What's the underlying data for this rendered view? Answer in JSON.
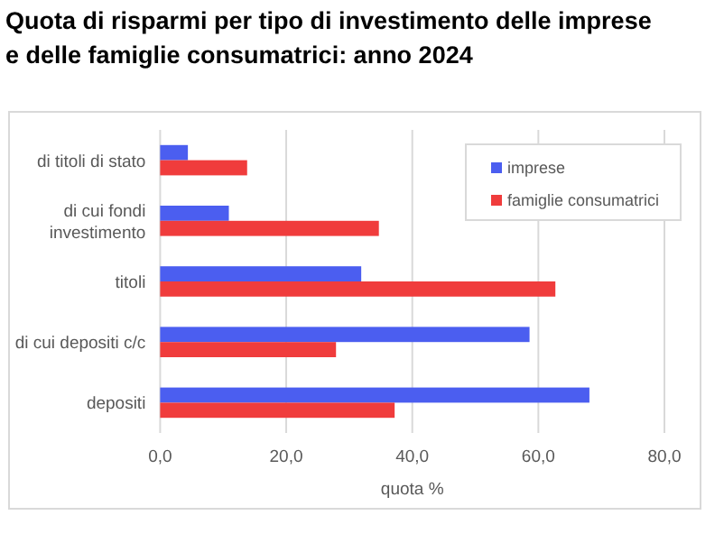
{
  "chart_data": {
    "type": "bar",
    "orientation": "horizontal",
    "title": "Quota di risparmi per tipo di investimento delle imprese e delle famiglie consumatrici: anno 2024",
    "xlabel": "quota %",
    "categories": [
      "di titoli di stato",
      "di cui fondi investimento",
      "titoli",
      "di cui depositi c/c",
      "depositi"
    ],
    "series": [
      {
        "name": "imprese",
        "color": "#4b5ef0",
        "values": [
          4.4,
          10.9,
          31.9,
          58.6,
          68.1
        ]
      },
      {
        "name": "famiglie consumatrici",
        "color": "#f03c3c",
        "values": [
          13.8,
          34.7,
          62.7,
          27.9,
          37.2
        ]
      }
    ],
    "xlim": [
      0,
      80
    ],
    "xticks": [
      {
        "value": 0,
        "label": "0,0"
      },
      {
        "value": 20,
        "label": "20,0"
      },
      {
        "value": 40,
        "label": "40,0"
      },
      {
        "value": 60,
        "label": "60,0"
      },
      {
        "value": 80,
        "label": "80,0"
      }
    ],
    "grid": "x",
    "legend": "top right"
  }
}
